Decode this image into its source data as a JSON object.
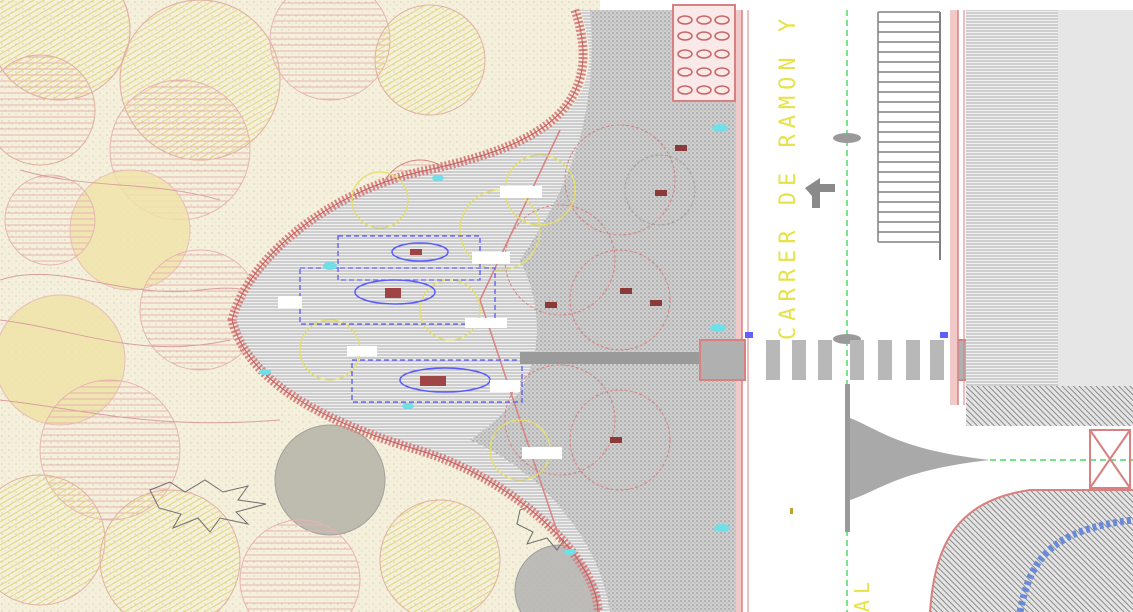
{
  "drawing": {
    "street_name": "CARRER DE RAMON Y CAJ",
    "street_name_2": "AL"
  },
  "colors": {
    "background": "#ffffff",
    "park_fill": "#f3efd8",
    "hatch_pink": "#e8a7a7",
    "hatch_yellow": "#e8dd7a",
    "pavement_gray": "#b0b0b0",
    "curb_red": "#d98080",
    "blue_block": "#5a5aff",
    "cyan_marker": "#6fe0e8",
    "label_yellow": "#e6e24a",
    "green_axis": "#25d043"
  },
  "icons": [
    "tree-symbol",
    "bench-symbol",
    "lamp-symbol",
    "road-arrow-symbol",
    "crosswalk"
  ]
}
